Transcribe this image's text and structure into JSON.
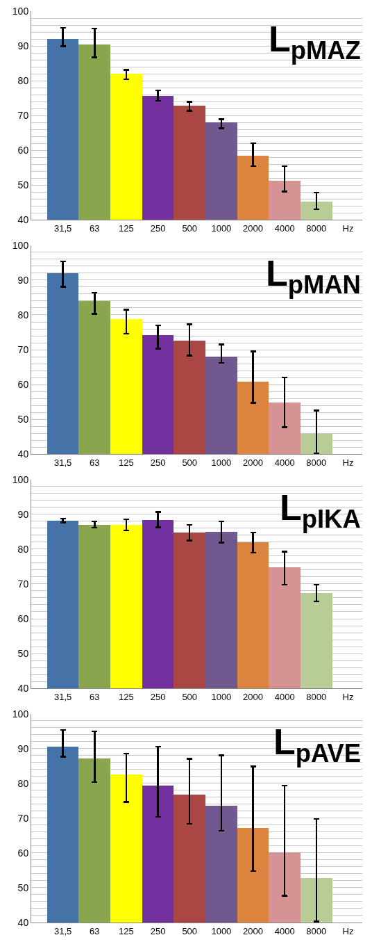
{
  "chart_data": [
    {
      "type": "bar",
      "title": "L$_{pMAZ}$",
      "categories": [
        "31,5",
        "63",
        "125",
        "250",
        "500",
        "1000",
        "2000",
        "4000",
        "8000",
        "Hz"
      ],
      "values": [
        92.0,
        90.5,
        82.0,
        75.7,
        72.8,
        68.0,
        58.5,
        51.2,
        45.2,
        null
      ],
      "colors": [
        "#4573a7",
        "#89a54e",
        "#ffff00",
        "#71309e",
        "#aa4644",
        "#71588f",
        "#db843d",
        "#d59394",
        "#b8cd96",
        "#ffffff"
      ],
      "errors": [
        [
          89.9,
          95.2
        ],
        [
          86.7,
          95.0
        ],
        [
          80.4,
          83.1
        ],
        [
          74.2,
          77.2
        ],
        [
          71.3,
          73.9
        ],
        [
          66.3,
          68.9
        ],
        [
          55.4,
          62.0
        ],
        [
          48.1,
          55.4
        ],
        [
          43.0,
          47.8
        ],
        null
      ],
      "ylim": [
        40,
        100
      ],
      "yticks": [
        40,
        {
          "value": 42,
          "label": null
        },
        {
          "value": 44,
          "label": null
        },
        {
          "value": 46,
          "label": null
        },
        {
          "value": 48,
          "label": null
        },
        50,
        {
          "value": 52,
          "label": null
        },
        {
          "value": 54,
          "label": null
        },
        {
          "value": 56,
          "label": null
        },
        {
          "value": 58,
          "label": null
        },
        60,
        {
          "value": 62,
          "label": null
        },
        {
          "value": 64,
          "label": null
        },
        {
          "value": 66,
          "label": null
        },
        {
          "value": 68,
          "label": null
        },
        70,
        {
          "value": 72,
          "label": null
        },
        {
          "value": 74,
          "label": null
        },
        {
          "value": 76,
          "label": null
        },
        {
          "value": 78,
          "label": null
        },
        80,
        {
          "value": 82,
          "label": null
        },
        {
          "value": 84,
          "label": null
        },
        {
          "value": 86,
          "label": null
        },
        {
          "value": 88,
          "label": null
        },
        90,
        {
          "value": 92,
          "label": null
        },
        {
          "value": 94,
          "label": null
        },
        {
          "value": 96,
          "label": null
        },
        {
          "value": 98,
          "label": null
        },
        100
      ],
      "grid": "y"
    },
    {
      "type": "bar",
      "title": "L$_{pMAN}$",
      "categories": [
        "31,5",
        "63",
        "125",
        "250",
        "500",
        "1000",
        "2000",
        "4000",
        "8000",
        "Hz"
      ],
      "values": [
        92.0,
        84.1,
        78.9,
        74.2,
        72.7,
        68.0,
        60.8,
        54.9,
        45.9,
        null
      ],
      "colors": [
        "#4573a7",
        "#89a54e",
        "#ffff00",
        "#71309e",
        "#aa4644",
        "#71588f",
        "#db843d",
        "#d59394",
        "#b8cd96",
        "#ffffff"
      ],
      "errors": [
        [
          88.1,
          95.4
        ],
        [
          80.3,
          86.4
        ],
        [
          74.6,
          81.5
        ],
        [
          70.3,
          77.0
        ],
        [
          68.3,
          77.3
        ],
        [
          66.2,
          71.5
        ],
        [
          54.7,
          69.5
        ],
        [
          47.7,
          62.0
        ],
        [
          40.2,
          52.5
        ],
        null
      ],
      "ylim": [
        40,
        100
      ],
      "yticks": [
        40,
        {
          "value": 42,
          "label": null
        },
        {
          "value": 44,
          "label": null
        },
        {
          "value": 46,
          "label": null
        },
        {
          "value": 48,
          "label": null
        },
        50,
        {
          "value": 52,
          "label": null
        },
        {
          "value": 54,
          "label": null
        },
        {
          "value": 56,
          "label": null
        },
        {
          "value": 58,
          "label": null
        },
        60,
        {
          "value": 62,
          "label": null
        },
        {
          "value": 64,
          "label": null
        },
        {
          "value": 66,
          "label": null
        },
        {
          "value": 68,
          "label": null
        },
        70,
        {
          "value": 72,
          "label": null
        },
        {
          "value": 74,
          "label": null
        },
        {
          "value": 76,
          "label": null
        },
        {
          "value": 78,
          "label": null
        },
        80,
        {
          "value": 82,
          "label": null
        },
        {
          "value": 84,
          "label": null
        },
        {
          "value": 86,
          "label": null
        },
        {
          "value": 88,
          "label": null
        },
        90,
        {
          "value": 92,
          "label": null
        },
        {
          "value": 94,
          "label": null
        },
        {
          "value": 96,
          "label": null
        },
        {
          "value": 98,
          "label": null
        },
        100
      ],
      "grid": "y"
    },
    {
      "type": "bar",
      "title": "L$_{pIKA}$",
      "categories": [
        "31,5",
        "63",
        "125",
        "250",
        "500",
        "1000",
        "2000",
        "4000",
        "8000",
        "Hz"
      ],
      "values": [
        88.3,
        87.0,
        87.0,
        88.4,
        84.8,
        85.0,
        82.0,
        74.8,
        67.5,
        null
      ],
      "colors": [
        "#4573a7",
        "#89a54e",
        "#ffff00",
        "#71309e",
        "#aa4644",
        "#71588f",
        "#db843d",
        "#d59394",
        "#b8cd96",
        "#ffffff"
      ],
      "errors": [
        [
          87.7,
          88.8
        ],
        [
          86.2,
          88.0
        ],
        [
          85.4,
          88.6
        ],
        [
          86.3,
          90.7
        ],
        [
          82.5,
          87.0
        ],
        [
          81.9,
          88.0
        ],
        [
          79.0,
          84.8
        ],
        [
          69.8,
          79.3
        ],
        [
          65.0,
          69.8
        ],
        null
      ],
      "ylim": [
        40,
        100
      ],
      "yticks": [
        40,
        {
          "value": 42,
          "label": null
        },
        {
          "value": 44,
          "label": null
        },
        {
          "value": 46,
          "label": null
        },
        {
          "value": 48,
          "label": null
        },
        50,
        {
          "value": 52,
          "label": null
        },
        {
          "value": 54,
          "label": null
        },
        {
          "value": 56,
          "label": null
        },
        {
          "value": 58,
          "label": null
        },
        60,
        {
          "value": 62,
          "label": null
        },
        {
          "value": 64,
          "label": null
        },
        {
          "value": 66,
          "label": null
        },
        {
          "value": 68,
          "label": null
        },
        70,
        {
          "value": 72,
          "label": null
        },
        {
          "value": 74,
          "label": null
        },
        {
          "value": 76,
          "label": null
        },
        {
          "value": 78,
          "label": null
        },
        80,
        {
          "value": 82,
          "label": null
        },
        {
          "value": 84,
          "label": null
        },
        {
          "value": 86,
          "label": null
        },
        {
          "value": 88,
          "label": null
        },
        90,
        {
          "value": 92,
          "label": null
        },
        {
          "value": 94,
          "label": null
        },
        {
          "value": 96,
          "label": null
        },
        {
          "value": 98,
          "label": null
        },
        100
      ],
      "grid": "y"
    },
    {
      "type": "bar",
      "title": "L$_{pAVE}$",
      "categories": [
        "31,5",
        "63",
        "125",
        "250",
        "500",
        "1000",
        "2000",
        "4000",
        "8000",
        "Hz"
      ],
      "values": [
        90.6,
        87.3,
        82.7,
        79.5,
        76.8,
        73.7,
        67.2,
        60.3,
        52.9,
        null
      ],
      "colors": [
        "#4573a7",
        "#89a54e",
        "#ffff00",
        "#71309e",
        "#aa4644",
        "#71588f",
        "#db843d",
        "#d59394",
        "#b8cd96",
        "#ffffff"
      ],
      "errors": [
        [
          87.7,
          95.4
        ],
        [
          80.4,
          95.0
        ],
        [
          74.7,
          88.6
        ],
        [
          70.4,
          90.6
        ],
        [
          68.4,
          87.1
        ],
        [
          66.4,
          88.1
        ],
        [
          54.8,
          84.9
        ],
        [
          47.7,
          79.4
        ],
        [
          40.3,
          69.8
        ],
        null
      ],
      "ylim": [
        40,
        100
      ],
      "yticks": [
        40,
        {
          "value": 42,
          "label": null
        },
        {
          "value": 44,
          "label": null
        },
        {
          "value": 46,
          "label": null
        },
        {
          "value": 48,
          "label": null
        },
        50,
        {
          "value": 52,
          "label": null
        },
        {
          "value": 54,
          "label": null
        },
        {
          "value": 56,
          "label": null
        },
        {
          "value": 58,
          "label": null
        },
        60,
        {
          "value": 62,
          "label": null
        },
        {
          "value": 64,
          "label": null
        },
        {
          "value": 66,
          "label": null
        },
        {
          "value": 68,
          "label": null
        },
        70,
        {
          "value": 72,
          "label": null
        },
        {
          "value": 74,
          "label": null
        },
        {
          "value": 76,
          "label": null
        },
        {
          "value": 78,
          "label": null
        },
        80,
        {
          "value": 82,
          "label": null
        },
        {
          "value": 84,
          "label": null
        },
        {
          "value": 86,
          "label": null
        },
        {
          "value": 88,
          "label": null
        },
        90,
        {
          "value": 92,
          "label": null
        },
        {
          "value": 94,
          "label": null
        },
        {
          "value": 96,
          "label": null
        },
        {
          "value": 98,
          "label": null
        },
        100
      ],
      "grid": "y"
    }
  ]
}
